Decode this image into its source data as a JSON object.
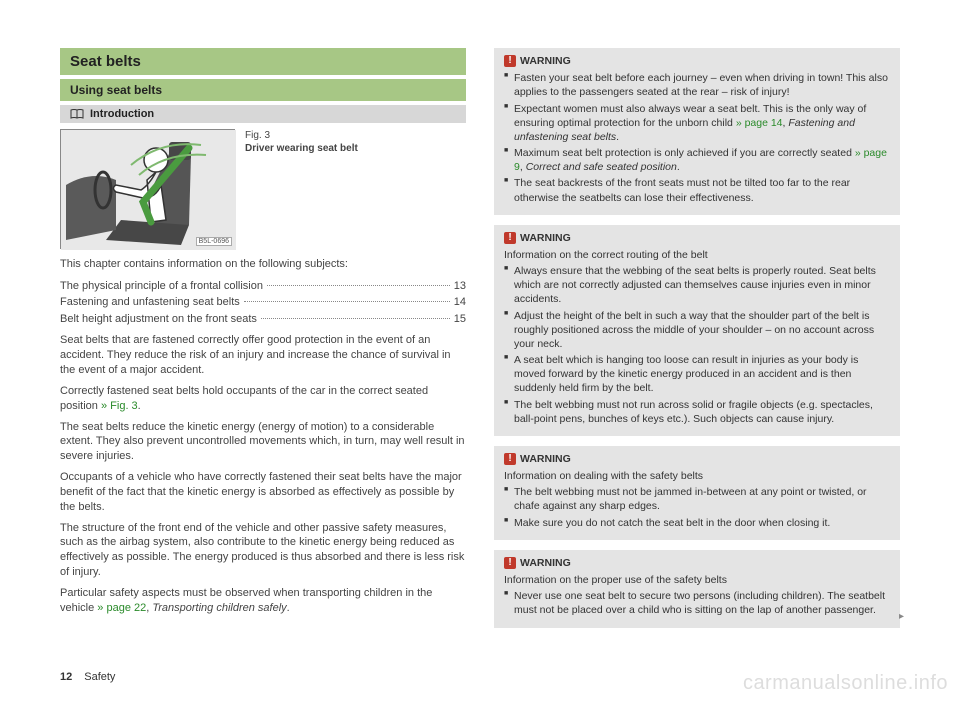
{
  "left": {
    "h1": "Seat belts",
    "h2": "Using seat belts",
    "h3": "Introduction",
    "fig": {
      "num": "Fig. 3",
      "caption": "Driver wearing seat belt",
      "code": "B5L-0696"
    },
    "tocIntro": "This chapter contains information on the following subjects:",
    "toc": [
      {
        "label": "The physical principle of a frontal collision",
        "page": "13"
      },
      {
        "label": "Fastening and unfastening seat belts",
        "page": "14"
      },
      {
        "label": "Belt height adjustment on the front seats",
        "page": "15"
      }
    ],
    "p1": "Seat belts that are fastened correctly offer good protection in the event of an accident. They reduce the risk of an injury and increase the chance of survival in the event of a major accident.",
    "p2a": "Correctly fastened seat belts hold occupants of the car in the correct seated position ",
    "p2ref": "» Fig. 3",
    "p2b": ".",
    "p3": "The seat belts reduce the kinetic energy (energy of motion) to a considerable extent. They also prevent uncontrolled movements which, in turn, may well result in severe injuries.",
    "p4": "Occupants of a vehicle who have correctly fastened their seat belts have the major benefit of the fact that the kinetic energy is absorbed as effectively as possible by the belts.",
    "p5": "The structure of the front end of the vehicle and other passive safety measures, such as the airbag system, also contribute to the kinetic energy being reduced as effectively as possible. The energy produced is thus absorbed and there is less risk of injury.",
    "p6a": "Particular safety aspects must be observed when transporting children in the vehicle ",
    "p6ref": "» page 22",
    "p6b": ", ",
    "p6i": "Transporting children safely",
    "p6c": "."
  },
  "right": {
    "warnLabel": "WARNING",
    "w1": {
      "items": [
        {
          "pre": "Fasten your seat belt before each journey – even when driving in town! This also applies to the passengers seated at the rear – risk of injury!"
        },
        {
          "pre": "Expectant women must also always wear a seat belt. This is the only way of ensuring optimal protection for the unborn child ",
          "ref": "» page 14",
          "post": ", ",
          "ital": "Fastening and unfastening seat belts",
          "post2": "."
        },
        {
          "pre": "Maximum seat belt protection is only achieved if you are correctly seated ",
          "ref": "» page 9",
          "post": ", ",
          "ital": "Correct and safe seated position",
          "post2": "."
        },
        {
          "pre": "The seat backrests of the front seats must not be tilted too far to the rear otherwise the seatbelts can lose their effectiveness."
        }
      ]
    },
    "w2": {
      "sub": "Information on the correct routing of the belt",
      "items": [
        {
          "pre": "Always ensure that the webbing of the seat belts is properly routed. Seat belts which are not correctly adjusted can themselves cause injuries even in minor accidents."
        },
        {
          "pre": "Adjust the height of the belt in such a way that the shoulder part of the belt is roughly positioned across the middle of your shoulder – on no account across your neck."
        },
        {
          "pre": "A seat belt which is hanging too loose can result in injuries as your body is moved forward by the kinetic energy produced in an accident and is then suddenly held firm by the belt."
        },
        {
          "pre": "The belt webbing must not run across solid or fragile objects (e.g. spectacles, ball-point pens, bunches of keys etc.). Such objects can cause injury."
        }
      ]
    },
    "w3": {
      "sub": "Information on dealing with the safety belts",
      "items": [
        {
          "pre": "The belt webbing must not be jammed in-between at any point or twisted, or chafe against any sharp edges."
        },
        {
          "pre": "Make sure you do not catch the seat belt in the door when closing it."
        }
      ]
    },
    "w4": {
      "sub": "Information on the proper use of the safety belts",
      "items": [
        {
          "pre": "Never use one seat belt to secure two persons (including children). The seatbelt must not be placed over a child who is sitting on the lap of another passenger."
        }
      ]
    }
  },
  "footer": {
    "page": "12",
    "section": "Safety"
  },
  "watermark": "carmanualsonline.info"
}
